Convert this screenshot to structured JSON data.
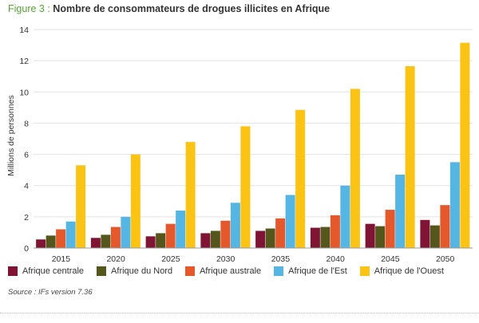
{
  "figure": {
    "label": "Figure 3 :",
    "title": "Nombre de consommateurs de drogues illicites en Afrique"
  },
  "source": "Source : IFs version 7.36",
  "chart_data": {
    "type": "bar",
    "title": "Nombre de consommateurs de drogues illicites en Afrique",
    "xlabel": "",
    "ylabel": "Millions de personnes",
    "ylim": [
      0,
      14
    ],
    "yticks": [
      0,
      2,
      4,
      6,
      8,
      10,
      12,
      14
    ],
    "grid": true,
    "legend_position": "bottom",
    "categories": [
      "2015",
      "2020",
      "2025",
      "2030",
      "2035",
      "2040",
      "2045",
      "2050"
    ],
    "series": [
      {
        "name": "Afrique centrale",
        "color": "#7f1434",
        "values": [
          0.55,
          0.65,
          0.75,
          0.95,
          1.1,
          1.3,
          1.55,
          1.8
        ]
      },
      {
        "name": "Afrique du Nord",
        "color": "#55561c",
        "values": [
          0.8,
          0.85,
          0.95,
          1.1,
          1.25,
          1.35,
          1.4,
          1.45
        ]
      },
      {
        "name": "Afrique australe",
        "color": "#e5582b",
        "values": [
          1.2,
          1.35,
          1.55,
          1.75,
          1.9,
          2.1,
          2.45,
          2.75
        ]
      },
      {
        "name": "Afrique de l'Est",
        "color": "#55b5e3",
        "values": [
          1.7,
          2.0,
          2.4,
          2.9,
          3.4,
          4.0,
          4.7,
          5.5
        ]
      },
      {
        "name": "Afrique de l'Ouest",
        "color": "#fbc314",
        "values": [
          5.3,
          6.0,
          6.8,
          7.8,
          8.85,
          10.2,
          11.65,
          13.15
        ]
      }
    ]
  }
}
